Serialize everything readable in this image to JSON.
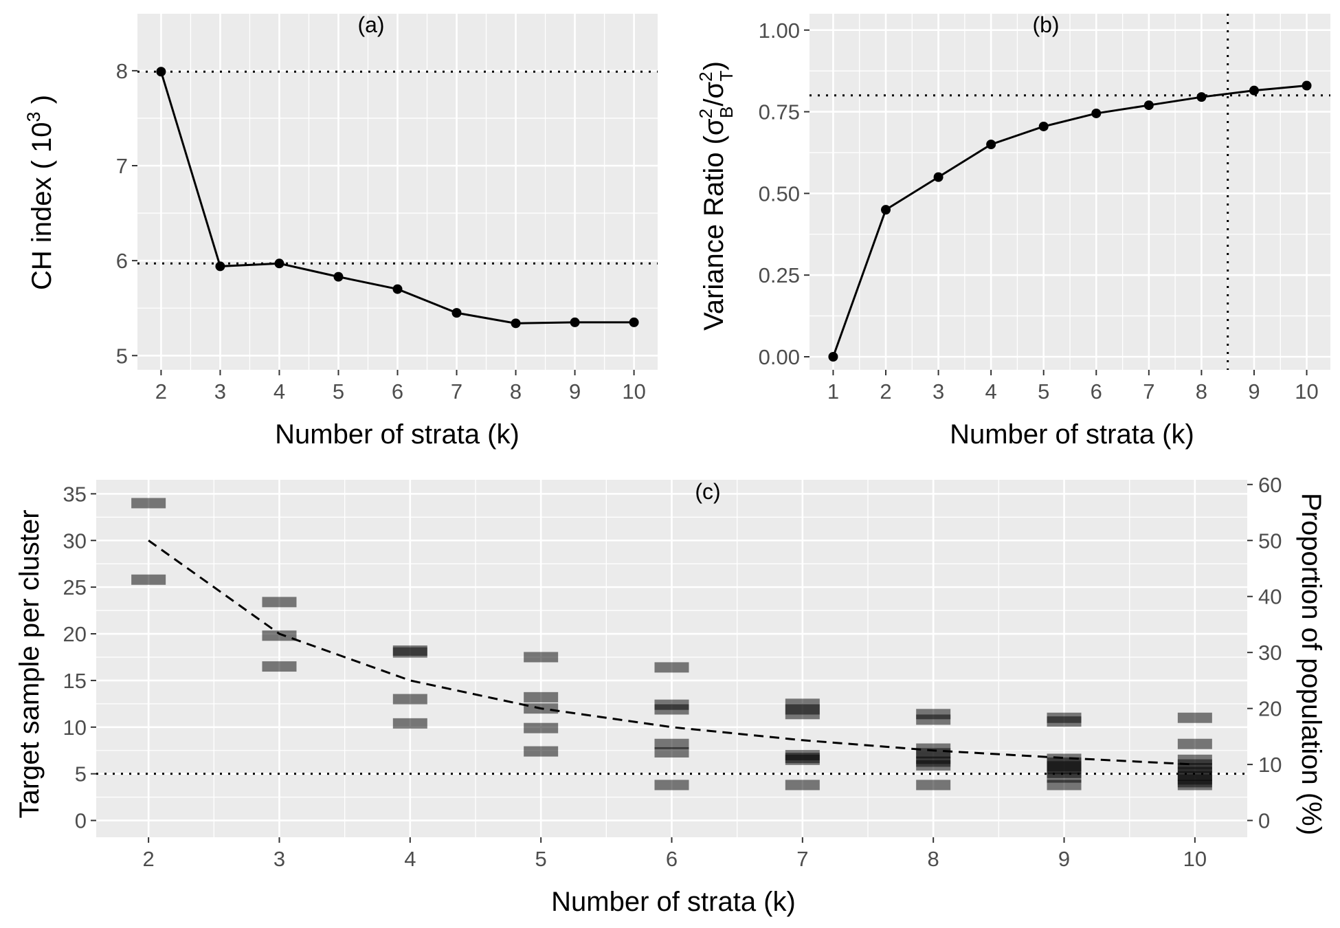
{
  "chart_data": [
    {
      "panel": "(a)",
      "type": "line",
      "title": "",
      "xlabel": "Number of strata (k)",
      "ylabel_prefix": "CH index ( 10",
      "ylabel_sup": "3",
      "ylabel_suffix": " )",
      "x": [
        2,
        3,
        4,
        5,
        6,
        7,
        8,
        9,
        10
      ],
      "y": [
        7.99,
        5.94,
        5.97,
        5.83,
        5.7,
        5.45,
        5.34,
        5.35,
        5.35
      ],
      "xlim": [
        1.6,
        10.4
      ],
      "ylim": [
        4.85,
        8.6
      ],
      "xticks": [
        "2",
        "3",
        "4",
        "5",
        "6",
        "7",
        "8",
        "9",
        "10"
      ],
      "yticks": [
        "5",
        "6",
        "7",
        "8"
      ],
      "hlines": [
        7.99,
        5.97
      ],
      "grid": true
    },
    {
      "panel": "(b)",
      "type": "line",
      "title": "",
      "xlabel": "Number of strata (k)",
      "ylabel_prefix": "Variance Ratio (",
      "ylabel_suffix": ")",
      "x": [
        1,
        2,
        3,
        4,
        5,
        6,
        7,
        8,
        9,
        10
      ],
      "y": [
        0.0,
        0.45,
        0.55,
        0.65,
        0.705,
        0.745,
        0.77,
        0.795,
        0.815,
        0.83
      ],
      "xlim": [
        0.55,
        10.45
      ],
      "ylim": [
        -0.04,
        1.05
      ],
      "xticks": [
        "1",
        "2",
        "3",
        "4",
        "5",
        "6",
        "7",
        "8",
        "9",
        "10"
      ],
      "yticks": [
        "0.00",
        "0.25",
        "0.50",
        "0.75",
        "1.00"
      ],
      "hline": 0.8,
      "vline": 8.5,
      "grid": true
    },
    {
      "panel": "(c)",
      "type": "scatter",
      "title": "",
      "xlabel": "Number of strata (k)",
      "ylabel": "Target sample per cluster",
      "y2label": "Proportion of population (%)",
      "xlim": [
        1.6,
        10.4
      ],
      "ylim": [
        -1.8,
        36.5
      ],
      "xticks": [
        "2",
        "3",
        "4",
        "5",
        "6",
        "7",
        "8",
        "9",
        "10"
      ],
      "yticks": [
        "0",
        "5",
        "10",
        "15",
        "20",
        "25",
        "30",
        "35"
      ],
      "y2ticks": [
        "0",
        "10",
        "20",
        "30",
        "40",
        "50",
        "60"
      ],
      "y2_per_y": 1.6667,
      "hline": 5,
      "trend_x": [
        2,
        3,
        4,
        5,
        6,
        7,
        8,
        9,
        10
      ],
      "trend_y": [
        30,
        20,
        15,
        12,
        10,
        8.6,
        7.5,
        6.7,
        6
      ],
      "points": [
        {
          "k": 2,
          "values": [
            34,
            25.8
          ]
        },
        {
          "k": 3,
          "values": [
            23.4,
            19.8,
            16.5
          ]
        },
        {
          "k": 4,
          "values": [
            18.2,
            18,
            13,
            10.4
          ]
        },
        {
          "k": 5,
          "values": [
            17.5,
            13.2,
            12,
            9.9,
            7.4
          ]
        },
        {
          "k": 6,
          "values": [
            16.4,
            12.4,
            11.9,
            8.2,
            7.3,
            3.8
          ]
        },
        {
          "k": 7,
          "values": [
            12.5,
            11.9,
            11.4,
            7,
            6.7,
            6.5,
            3.8
          ]
        },
        {
          "k": 8,
          "values": [
            11.4,
            10.8,
            7.7,
            7.2,
            6.6,
            6.3,
            5.9,
            3.8
          ]
        },
        {
          "k": 9,
          "values": [
            11,
            10.6,
            6.6,
            6.2,
            5.8,
            5.5,
            5.1,
            4.6,
            3.8
          ]
        },
        {
          "k": 10,
          "values": [
            11,
            8.2,
            6.5,
            6,
            5.6,
            5.2,
            4.8,
            4.4,
            4.1,
            3.8
          ]
        }
      ],
      "grid": true
    }
  ]
}
